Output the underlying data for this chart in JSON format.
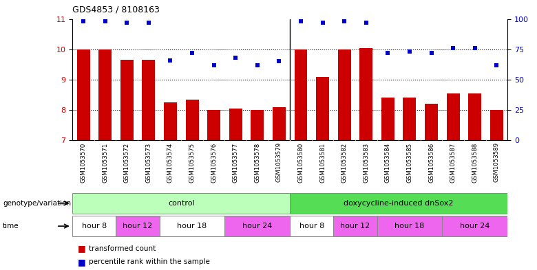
{
  "title": "GDS4853 / 8108163",
  "samples": [
    "GSM1053570",
    "GSM1053571",
    "GSM1053572",
    "GSM1053573",
    "GSM1053574",
    "GSM1053575",
    "GSM1053576",
    "GSM1053577",
    "GSM1053578",
    "GSM1053579",
    "GSM1053580",
    "GSM1053581",
    "GSM1053582",
    "GSM1053583",
    "GSM1053584",
    "GSM1053585",
    "GSM1053586",
    "GSM1053587",
    "GSM1053588",
    "GSM1053589"
  ],
  "bar_values": [
    10.0,
    10.0,
    9.65,
    9.65,
    8.25,
    8.35,
    8.0,
    8.05,
    8.0,
    8.1,
    10.0,
    9.1,
    10.0,
    10.05,
    8.4,
    8.4,
    8.2,
    8.55,
    8.55,
    8.0
  ],
  "percentile_values": [
    98,
    98,
    97,
    97,
    66,
    72,
    62,
    68,
    62,
    65,
    98,
    97,
    98,
    97,
    72,
    73,
    72,
    76,
    76,
    62
  ],
  "ylim_left": [
    7,
    11
  ],
  "ylim_right": [
    0,
    100
  ],
  "yticks_left": [
    7,
    8,
    9,
    10,
    11
  ],
  "yticks_right": [
    0,
    25,
    50,
    75,
    100
  ],
  "bar_color": "#cc0000",
  "dot_color": "#0000cc",
  "bar_width": 0.6,
  "genotype_groups": [
    {
      "label": "control",
      "start": 0,
      "end": 9,
      "color": "#bbffbb"
    },
    {
      "label": "doxycycline-induced dnSox2",
      "start": 10,
      "end": 19,
      "color": "#55dd55"
    }
  ],
  "time_groups": [
    {
      "label": "hour 8",
      "start": 0,
      "end": 1,
      "color": "#ffffff"
    },
    {
      "label": "hour 12",
      "start": 2,
      "end": 3,
      "color": "#ee66ee"
    },
    {
      "label": "hour 18",
      "start": 4,
      "end": 6,
      "color": "#ffffff"
    },
    {
      "label": "hour 24",
      "start": 7,
      "end": 9,
      "color": "#ee66ee"
    },
    {
      "label": "hour 8",
      "start": 10,
      "end": 11,
      "color": "#ffffff"
    },
    {
      "label": "hour 12",
      "start": 12,
      "end": 13,
      "color": "#ee66ee"
    },
    {
      "label": "hour 18",
      "start": 14,
      "end": 16,
      "color": "#ee66ee"
    },
    {
      "label": "hour 24",
      "start": 17,
      "end": 19,
      "color": "#ee66ee"
    }
  ],
  "genotype_label": "genotype/variation",
  "time_label": "time",
  "legend_bar": "transformed count",
  "legend_dot": "percentile rank within the sample",
  "xticklabel_bg": "#d0d0d0",
  "separator_color": "#000000",
  "grid_yticks": [
    8,
    9,
    10
  ]
}
